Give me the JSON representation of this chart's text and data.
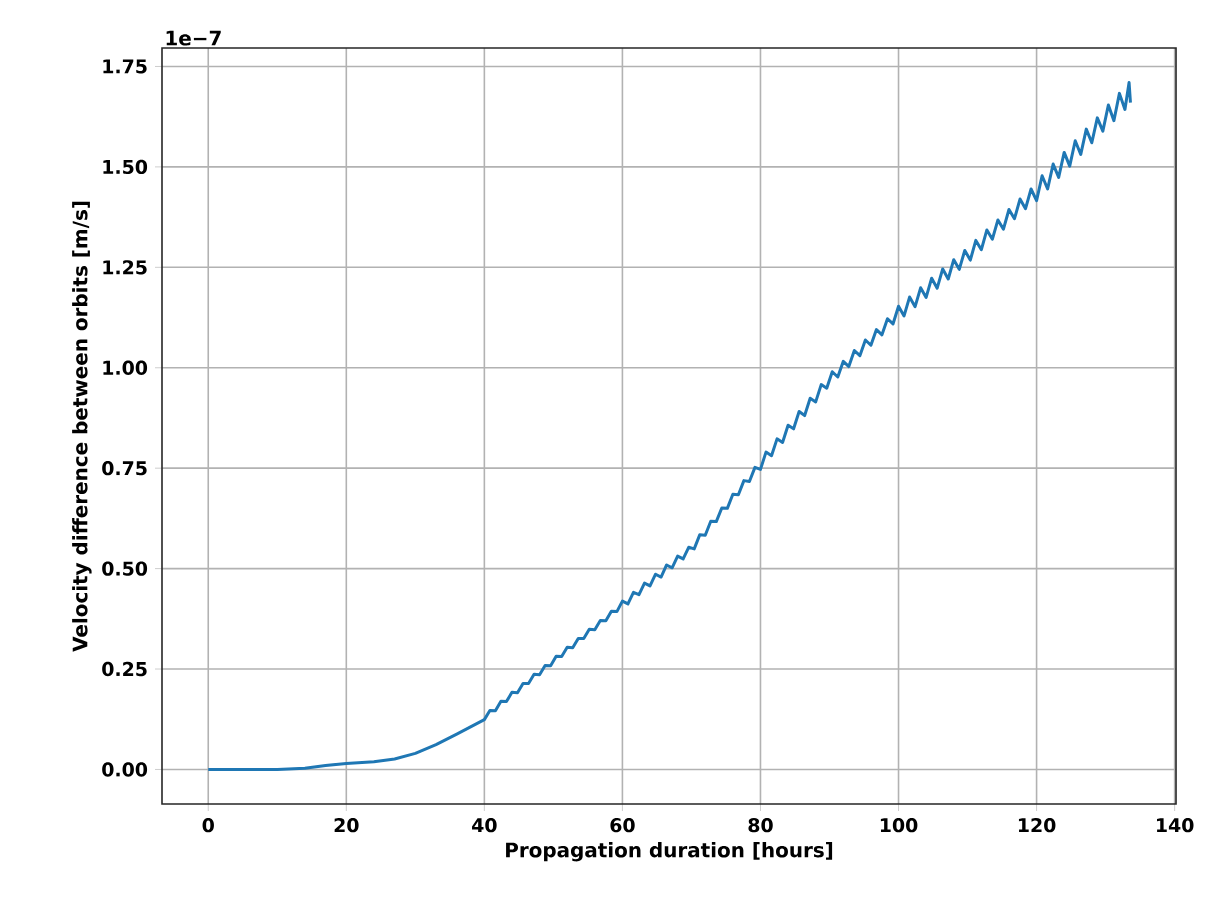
{
  "chart_data": {
    "type": "line",
    "xlabel": "Propagation duration [hours]",
    "ylabel": "Velocity difference between orbits [m/s]",
    "annotations": [
      "1e−7"
    ],
    "xlim": [
      -6.7,
      140.2
    ],
    "xticks": [
      0,
      20,
      40,
      60,
      80,
      100,
      120,
      140
    ],
    "ylim": [
      -0.086,
      1.796
    ],
    "yticks": [
      {
        "value": 0,
        "label": "0.00"
      },
      {
        "value": 0.25,
        "label": "0.25"
      },
      {
        "value": 0.5,
        "label": "0.50"
      },
      {
        "value": 0.75,
        "label": "0.75"
      },
      {
        "value": 1.0,
        "label": "1.00"
      },
      {
        "value": 1.25,
        "label": "1.25"
      },
      {
        "value": 1.5,
        "label": "1.50"
      },
      {
        "value": 1.75,
        "label": "1.75"
      }
    ],
    "grid": true,
    "series": [
      {
        "color": "#1f77b4",
        "x": [
          0,
          5,
          10,
          14,
          17,
          20,
          24,
          27,
          30,
          33,
          36,
          38,
          40.0,
          40.8,
          41.6,
          42.4,
          43.2,
          44.0,
          44.8,
          45.6,
          46.4,
          47.2,
          48.0,
          48.8,
          49.6,
          50.4,
          51.2,
          52.0,
          52.8,
          53.6,
          54.4,
          55.2,
          56.0,
          56.8,
          57.6,
          58.4,
          59.2,
          60.0,
          60.8,
          61.6,
          62.4,
          63.2,
          64.0,
          64.8,
          65.6,
          66.4,
          67.2,
          68.0,
          68.8,
          69.6,
          70.4,
          71.2,
          72.0,
          72.8,
          73.6,
          74.4,
          75.2,
          76.0,
          76.8,
          77.6,
          78.4,
          79.2,
          80.0,
          80.8,
          81.6,
          82.4,
          83.2,
          84.0,
          84.8,
          85.6,
          86.4,
          87.2,
          88.0,
          88.8,
          89.6,
          90.4,
          91.2,
          92.0,
          92.8,
          93.6,
          94.4,
          95.2,
          96.0,
          96.8,
          97.6,
          98.4,
          99.2,
          100.0,
          100.8,
          101.6,
          102.4,
          103.2,
          104.0,
          104.8,
          105.6,
          106.4,
          107.2,
          108.0,
          108.8,
          109.6,
          110.4,
          111.2,
          112.0,
          112.8,
          113.6,
          114.4,
          115.2,
          116.0,
          116.8,
          117.6,
          118.4,
          119.2,
          120.0,
          120.8,
          121.6,
          122.4,
          123.2,
          124.0,
          124.8,
          125.6,
          126.4,
          127.2,
          128.0,
          128.8,
          129.6,
          130.4,
          131.2,
          132.0,
          132.8,
          133.4,
          133.6
        ],
        "values": [
          0,
          0,
          0,
          0.003,
          0.01,
          0.015,
          0.019,
          0.026,
          0.04,
          0.062,
          0.088,
          0.106,
          0.124,
          0.147,
          0.146,
          0.17,
          0.169,
          0.192,
          0.191,
          0.214,
          0.214,
          0.237,
          0.236,
          0.259,
          0.258,
          0.282,
          0.281,
          0.304,
          0.303,
          0.326,
          0.326,
          0.349,
          0.348,
          0.371,
          0.37,
          0.394,
          0.393,
          0.419,
          0.412,
          0.441,
          0.435,
          0.464,
          0.457,
          0.486,
          0.479,
          0.509,
          0.502,
          0.531,
          0.524,
          0.553,
          0.549,
          0.584,
          0.583,
          0.618,
          0.617,
          0.651,
          0.65,
          0.685,
          0.684,
          0.719,
          0.717,
          0.752,
          0.747,
          0.79,
          0.781,
          0.823,
          0.814,
          0.857,
          0.848,
          0.891,
          0.881,
          0.924,
          0.915,
          0.958,
          0.949,
          0.99,
          0.977,
          1.016,
          1.003,
          1.043,
          1.03,
          1.069,
          1.056,
          1.095,
          1.082,
          1.122,
          1.109,
          1.153,
          1.129,
          1.176,
          1.152,
          1.199,
          1.175,
          1.223,
          1.198,
          1.246,
          1.221,
          1.269,
          1.245,
          1.292,
          1.268,
          1.317,
          1.294,
          1.343,
          1.32,
          1.368,
          1.345,
          1.394,
          1.371,
          1.42,
          1.396,
          1.445,
          1.416,
          1.478,
          1.445,
          1.507,
          1.474,
          1.536,
          1.502,
          1.565,
          1.531,
          1.594,
          1.56,
          1.622,
          1.589,
          1.654,
          1.615,
          1.683,
          1.643,
          1.71,
          1.66
        ]
      }
    ]
  }
}
